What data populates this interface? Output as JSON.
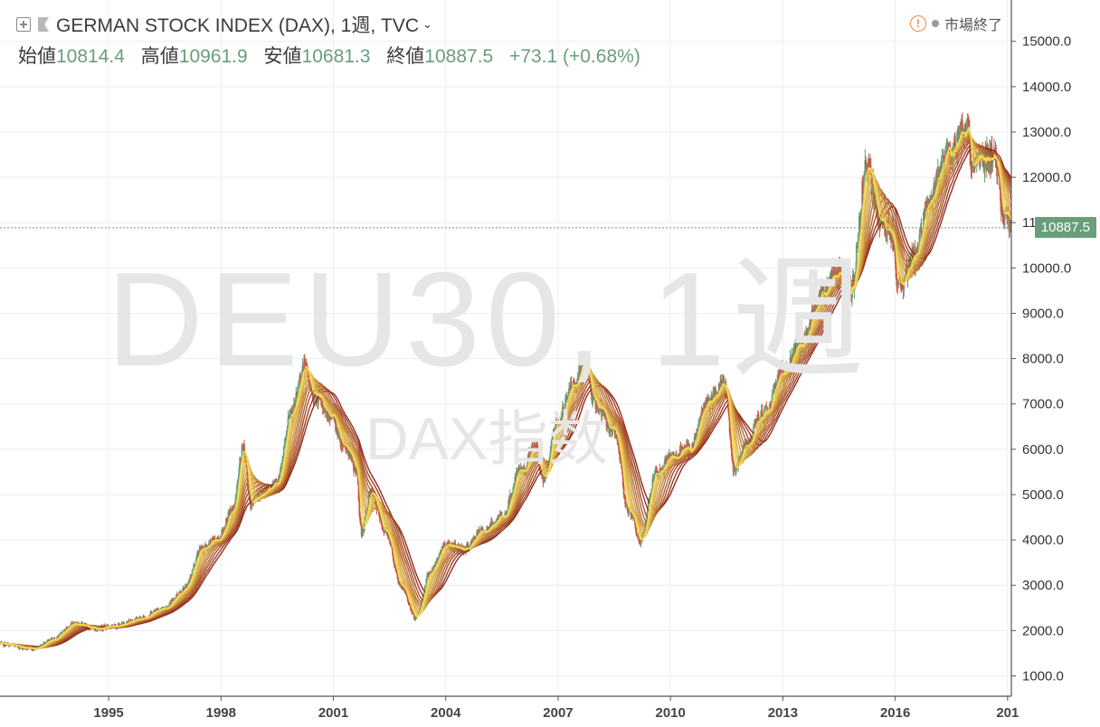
{
  "header": {
    "title": "GERMAN STOCK INDEX (DAX), 1週, TVC",
    "market_status": "市場終了",
    "warning_symbol": "!"
  },
  "ohlc": {
    "open_label": "始値",
    "open": "10814.4",
    "high_label": "高値",
    "high": "10961.9",
    "low_label": "安値",
    "low": "10681.3",
    "close_label": "終値",
    "close": "10887.5",
    "change": "+73.1 (+0.68%)"
  },
  "watermark": {
    "main": "DEU30, 1週",
    "sub": "DAX指数"
  },
  "last_price_label": "10887.5",
  "colors": {
    "up": "#6a9e7a",
    "down": "#c9553f",
    "ma_light": "#f7e05a",
    "ma_dark": "#8c1f12"
  },
  "chart_data": {
    "type": "line",
    "subtype": "weekly candlestick with moving-average ribbon",
    "y_ticks": [
      "1000.0",
      "2000.0",
      "3000.0",
      "4000.0",
      "5000.0",
      "6000.0",
      "7000.0",
      "8000.0",
      "9000.0",
      "10000.0",
      "11000.0",
      "12000.0",
      "13000.0",
      "14000.0",
      "15000.0"
    ],
    "x_ticks": [
      "1995",
      "1998",
      "2001",
      "2004",
      "2007",
      "2010",
      "2013",
      "2016",
      "201"
    ],
    "ylim": [
      0,
      15500
    ],
    "xlim": [
      1992.1,
      2019.1
    ],
    "y_scale": "linear",
    "grid": true,
    "last_price": 10887.5,
    "series": [
      {
        "x": [
          1992.1,
          1993.0,
          1993.5,
          1994.1,
          1994.6,
          1995.2,
          1995.8,
          1996.5,
          1997.0,
          1997.5,
          1997.9,
          1998.3,
          1998.6,
          1998.8,
          1999.0,
          1999.5,
          1999.9,
          2000.2,
          2000.5,
          2000.9,
          2001.3,
          2001.6,
          2001.75,
          2002.0,
          2002.4,
          2002.8,
          2003.2,
          2003.6,
          2004.0,
          2004.5,
          2005.0,
          2005.5,
          2006.0,
          2006.4,
          2006.6,
          2007.0,
          2007.4,
          2007.7,
          2008.0,
          2008.5,
          2008.9,
          2009.2,
          2009.6,
          2010.0,
          2010.5,
          2011.0,
          2011.45,
          2011.7,
          2011.95,
          2012.5,
          2013.0,
          2013.5,
          2014.0,
          2014.5,
          2014.8,
          2015.25,
          2015.6,
          2015.9,
          2016.1,
          2016.5,
          2016.9,
          2017.4,
          2017.9,
          2018.05,
          2018.6,
          2018.9,
          2019.1
        ],
        "y": [
          1700,
          1600,
          1800,
          2150,
          2050,
          2100,
          2250,
          2500,
          2900,
          3800,
          4000,
          4600,
          6000,
          4800,
          5000,
          5300,
          6800,
          7800,
          7200,
          6800,
          6100,
          5600,
          4200,
          5000,
          4200,
          3000,
          2300,
          3300,
          3900,
          3800,
          4200,
          4500,
          5500,
          6000,
          5400,
          6600,
          7400,
          7900,
          7000,
          6400,
          4600,
          4000,
          5400,
          5800,
          6000,
          7000,
          7400,
          5600,
          6000,
          6800,
          7700,
          8300,
          9400,
          9900,
          9500,
          12200,
          11000,
          10800,
          9600,
          10200,
          11400,
          12500,
          13100,
          12400,
          12500,
          11300,
          10887.5
        ]
      }
    ]
  }
}
